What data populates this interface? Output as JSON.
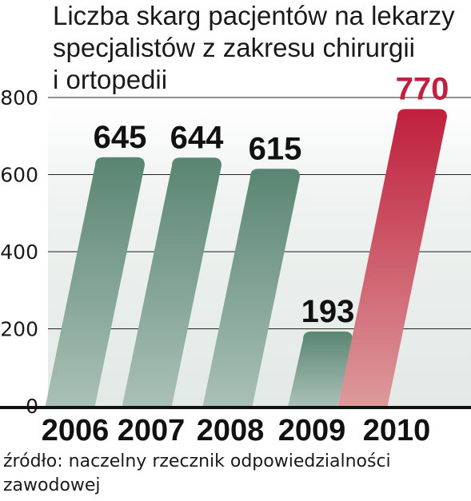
{
  "chart_data": {
    "type": "bar",
    "title": "Liczba skarg pacjentów na lekarzy specjalistów z zakresu chirurgii i ortopedii",
    "title_lines": [
      "Liczba skarg pacjentów na lekarzy",
      "specjalistów z zakresu chirurgii",
      "i ortopedii"
    ],
    "categories": [
      "2006",
      "2007",
      "2008",
      "2009",
      "2010"
    ],
    "values": [
      645,
      644,
      615,
      193,
      770
    ],
    "value_labels": [
      "645",
      "644",
      "615",
      "193",
      "770"
    ],
    "yticks": [
      0,
      200,
      400,
      600,
      800
    ],
    "ytick_labels": [
      "0",
      "200",
      "400",
      "600",
      "800"
    ],
    "ylim": [
      0,
      800
    ],
    "xlabel": "",
    "ylabel": "",
    "grid": true,
    "colors": {
      "bar": "#5f8a78",
      "bar_light": "#a4bdb3",
      "highlight_bar": "#c2203f",
      "highlight_bar_light": "#d8888e",
      "highlight_label": "#c2203f",
      "label": "#111111",
      "background_band": "#e4ebe8"
    },
    "highlight_index": 4
  },
  "source": {
    "text": "źródło: naczelny rzecznik odpowiedzialności zawodowej"
  }
}
